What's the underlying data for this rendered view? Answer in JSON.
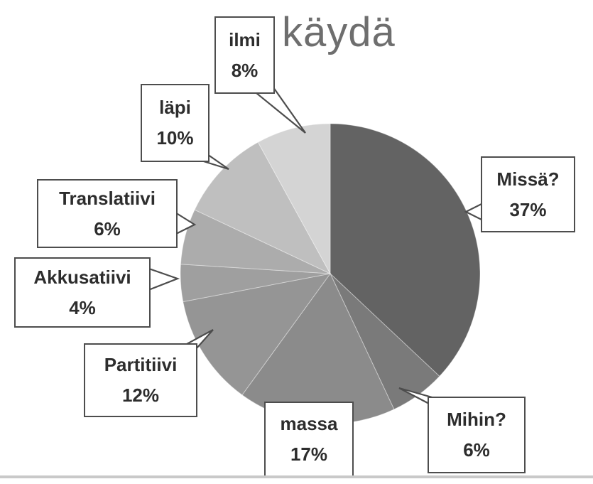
{
  "chart_data": {
    "type": "pie",
    "title": "käydä",
    "series": [
      {
        "label": "Missä?",
        "value": 37,
        "display": "37%",
        "color": "#636363"
      },
      {
        "label": "Mihin?",
        "value": 6,
        "display": "6%",
        "color": "#7a7a7a"
      },
      {
        "label": "massa",
        "value": 17,
        "display": "17%",
        "color": "#8b8b8b"
      },
      {
        "label": "Partitiivi",
        "value": 12,
        "display": "12%",
        "color": "#959595"
      },
      {
        "label": "Akkusatiivi",
        "value": 4,
        "display": "4%",
        "color": "#9f9f9f"
      },
      {
        "label": "Translatiivi",
        "value": 6,
        "display": "6%",
        "color": "#acacac"
      },
      {
        "label": "läpi",
        "value": 10,
        "display": "10%",
        "color": "#bfbfbf"
      },
      {
        "label": "ilmi",
        "value": 8,
        "display": "8%",
        "color": "#d4d4d4"
      }
    ],
    "total": 100,
    "start_angle_deg": 0,
    "direction": "clockwise",
    "legend": "none",
    "labels_style": "callout boxes with name and percent",
    "palette": "grayscale dark-to-light",
    "background_color": "#ffffff",
    "page_edge_line_color": "#c9c9c9",
    "callout_border_color": "#4d4d4d",
    "title_color": "#6e6e6e"
  }
}
